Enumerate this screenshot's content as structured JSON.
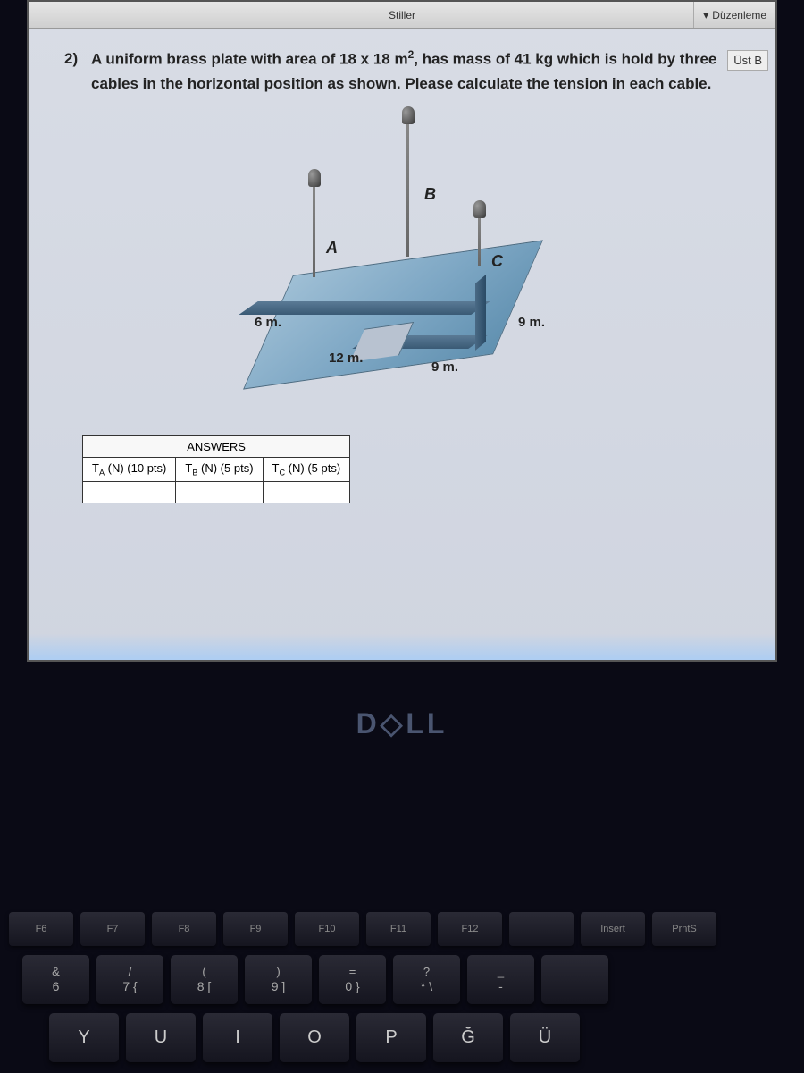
{
  "toolbar": {
    "center": "Stiller",
    "right1": "Düzenleme",
    "right2": "Üst B"
  },
  "question": {
    "number": "2)",
    "text_part1": "A uniform brass plate with area of 18 x 18 m",
    "text_sup": "2",
    "text_part2": ", has mass of 41 kg which is hold by three cables in the horizontal position as shown. Please calculate the tension in each cable."
  },
  "diagram": {
    "label_a": "A",
    "label_b": "B",
    "label_c": "C",
    "dim_6m": "6 m.",
    "dim_12m": "12 m.",
    "dim_9m_front": "9 m.",
    "dim_9m_right": "9 m.",
    "plate_color_light": "#9fbfd5",
    "plate_color_dark": "#3a5a75",
    "cable_color": "#666"
  },
  "table": {
    "title": "ANSWERS",
    "col1_a": "T",
    "col1_sub": "A",
    "col1_b": " (N) (10 pts)",
    "col2_a": "T",
    "col2_sub": "B",
    "col2_b": " (N)  (5 pts)",
    "col3_a": "T",
    "col3_sub": "C",
    "col3_b": " (N)  (5 pts)"
  },
  "brand": "D◇LL",
  "keys": {
    "frow": [
      "F6",
      "F7",
      "F8",
      "F9",
      "F10",
      "F11",
      "F12",
      "",
      "Insert",
      "PrntS"
    ],
    "nrow": [
      {
        "top": "&",
        "bot": "6"
      },
      {
        "top": "/",
        "bot": "7   {"
      },
      {
        "top": "(",
        "bot": "8   ["
      },
      {
        "top": ")",
        "bot": "9   ]"
      },
      {
        "top": "=",
        "bot": "0   }"
      },
      {
        "top": "?",
        "bot": "*   \\"
      },
      {
        "top": "_",
        "bot": "-"
      },
      {
        "top": "",
        "bot": ""
      }
    ],
    "lrow": [
      "Y",
      "U",
      "I",
      "O",
      "P",
      "Ğ",
      "Ü"
    ]
  }
}
